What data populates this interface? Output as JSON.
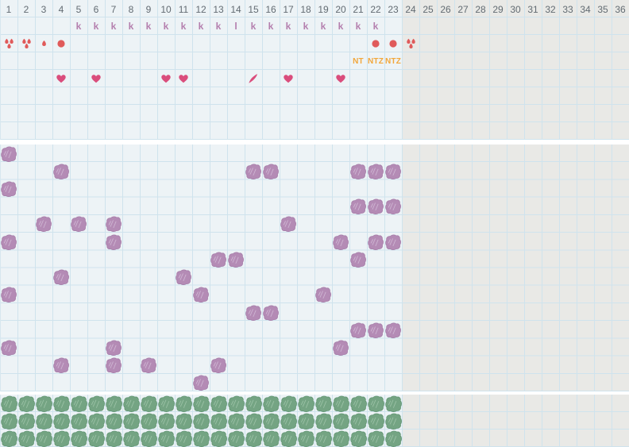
{
  "chart": {
    "columns": 36,
    "active_days": 23,
    "day_numbers": [
      "1",
      "2",
      "3",
      "4",
      "5",
      "6",
      "7",
      "8",
      "9",
      "10",
      "11",
      "12",
      "13",
      "14",
      "15",
      "16",
      "17",
      "18",
      "19",
      "20",
      "21",
      "22",
      "23",
      "24",
      "25",
      "26",
      "27",
      "28",
      "29",
      "30",
      "31",
      "32",
      "33",
      "34",
      "35",
      "36"
    ],
    "colors": {
      "background": "#edf3f6",
      "grid_line": "#cfe3ed",
      "inactive_overlay": "#e9e9e6",
      "day_text": "#626b72",
      "code_text": "#b47fae",
      "label_text": "#f2a73b",
      "bleeding": "#e05a5a",
      "heart": "#da4d7c",
      "mark_purple": "#b48bb5",
      "mark_purple_edge": "#a379a6",
      "mark_purple_streak": "#d5bfd9",
      "mark_green": "#74a483",
      "mark_green_edge": "#5f9370",
      "mark_green_streak": "#a3c7ac"
    },
    "top_section": {
      "rows": 8,
      "code_row": {
        "row": 2,
        "entries": [
          {
            "day": 5,
            "code": "k"
          },
          {
            "day": 6,
            "code": "k"
          },
          {
            "day": 7,
            "code": "k"
          },
          {
            "day": 8,
            "code": "k"
          },
          {
            "day": 9,
            "code": "k"
          },
          {
            "day": 10,
            "code": "k"
          },
          {
            "day": 11,
            "code": "k"
          },
          {
            "day": 12,
            "code": "k"
          },
          {
            "day": 13,
            "code": "k"
          },
          {
            "day": 14,
            "code": "l"
          },
          {
            "day": 15,
            "code": "k"
          },
          {
            "day": 16,
            "code": "k"
          },
          {
            "day": 17,
            "code": "k"
          },
          {
            "day": 18,
            "code": "k"
          },
          {
            "day": 19,
            "code": "k"
          },
          {
            "day": 20,
            "code": "k"
          },
          {
            "day": 21,
            "code": "k"
          },
          {
            "day": 22,
            "code": "k"
          }
        ]
      },
      "bleeding_row": {
        "row": 3,
        "entries": [
          {
            "day": 1,
            "type": "heavy"
          },
          {
            "day": 2,
            "type": "heavy"
          },
          {
            "day": 3,
            "type": "light"
          },
          {
            "day": 4,
            "type": "spotting"
          },
          {
            "day": 22,
            "type": "spotting"
          },
          {
            "day": 23,
            "type": "spotting"
          },
          {
            "day": 24,
            "type": "heavy"
          }
        ]
      },
      "label_row": {
        "row": 4,
        "entries": [
          {
            "day": 21,
            "text": "NT"
          },
          {
            "day": 22,
            "text": "NTZ"
          },
          {
            "day": 23,
            "text": "NTZ"
          }
        ]
      },
      "heart_row": {
        "row": 5,
        "hearts": [
          4,
          6,
          10,
          11,
          17,
          20
        ],
        "pen_day": 15
      }
    },
    "middle_section": {
      "rows": 14,
      "marks": [
        {
          "row": 1,
          "days": [
            1
          ]
        },
        {
          "row": 2,
          "days": [
            4,
            15,
            16,
            21,
            22,
            23
          ]
        },
        {
          "row": 3,
          "days": [
            1
          ]
        },
        {
          "row": 4,
          "days": [
            21,
            22,
            23
          ]
        },
        {
          "row": 5,
          "days": [
            3,
            5,
            7,
            17
          ]
        },
        {
          "row": 6,
          "days": [
            1,
            7,
            20,
            22,
            23
          ]
        },
        {
          "row": 7,
          "days": [
            13,
            14,
            21
          ]
        },
        {
          "row": 8,
          "days": [
            4,
            11
          ]
        },
        {
          "row": 9,
          "days": [
            1,
            12,
            19
          ]
        },
        {
          "row": 10,
          "days": [
            15,
            16
          ]
        },
        {
          "row": 11,
          "days": [
            21,
            22,
            23
          ]
        },
        {
          "row": 12,
          "days": [
            1,
            7,
            20
          ]
        },
        {
          "row": 13,
          "days": [
            4,
            7,
            9,
            13
          ]
        },
        {
          "row": 14,
          "days": [
            12
          ]
        }
      ]
    },
    "bottom_section": {
      "rows": 3,
      "filled_days": 23
    }
  }
}
